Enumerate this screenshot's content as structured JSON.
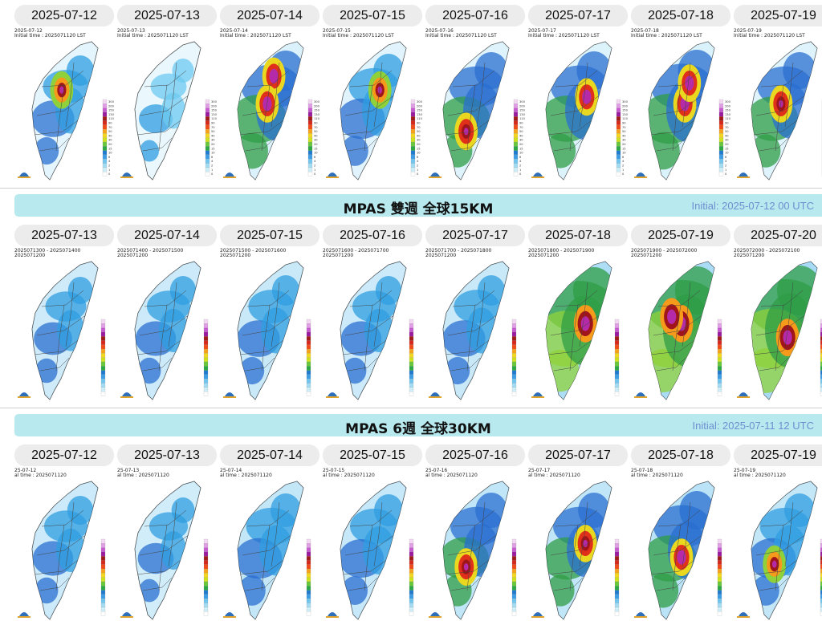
{
  "colors": {
    "banner": "#b7e9ef",
    "pill": "#ececec",
    "initial_text": "#6f8fd0"
  },
  "rows": [
    {
      "title": "",
      "initial": "",
      "style": "cwa",
      "tiles": [
        {
          "date": "2025-07-12",
          "cap1": "2025-07-12",
          "cap2": "Initial time : 2025071120 LST",
          "intensity": 0.35,
          "hot": [
            [
              0.45,
              0.35
            ]
          ]
        },
        {
          "date": "2025-07-13",
          "cap1": "2025-07-13",
          "cap2": "Initial time : 2025071120 LST",
          "intensity": 0.15,
          "hot": []
        },
        {
          "date": "2025-07-14",
          "cap1": "2025-07-14",
          "cap2": "Initial time : 2025071120 LST",
          "intensity": 0.65,
          "hot": [
            [
              0.55,
              0.25
            ],
            [
              0.45,
              0.45
            ]
          ]
        },
        {
          "date": "2025-07-15",
          "cap1": "2025-07-15",
          "cap2": "Initial time : 2025071120 LST",
          "intensity": 0.45,
          "hot": [
            [
              0.6,
              0.35
            ]
          ]
        },
        {
          "date": "2025-07-16",
          "cap1": "2025-07-16",
          "cap2": "Initial time : 2025071120 LST",
          "intensity": 0.55,
          "hot": [
            [
              0.35,
              0.65
            ]
          ]
        },
        {
          "date": "2025-07-17",
          "cap1": "2025-07-17",
          "cap2": "Initial time : 2025071120 LST",
          "intensity": 0.6,
          "hot": [
            [
              0.62,
              0.4
            ]
          ]
        },
        {
          "date": "2025-07-18",
          "cap1": "2025-07-18",
          "cap2": "Initial time : 2025071120 LST",
          "intensity": 0.7,
          "hot": [
            [
              0.55,
              0.45
            ],
            [
              0.62,
              0.3
            ]
          ]
        },
        {
          "date": "2025-07-19",
          "cap1": "2025-07-19",
          "cap2": "Initial time : 2025071120 LST",
          "intensity": 0.55,
          "hot": [
            [
              0.45,
              0.45
            ]
          ]
        }
      ]
    },
    {
      "title": "MPAS 雙週 全球15KM",
      "initial": "Initial: 2025-07-12 00 UTC",
      "style": "mpas15",
      "tiles": [
        {
          "date": "2025-07-13",
          "cap1": "2025071300 - 2025071400",
          "cap2": "2025071200",
          "intensity": 0.25,
          "hot": []
        },
        {
          "date": "2025-07-14",
          "cap1": "2025071400 - 2025071500",
          "cap2": "2025071200",
          "intensity": 0.3,
          "hot": []
        },
        {
          "date": "2025-07-15",
          "cap1": "2025071500 - 2025071600",
          "cap2": "2025071200",
          "intensity": 0.35,
          "hot": []
        },
        {
          "date": "2025-07-16",
          "cap1": "2025071600 - 2025071700",
          "cap2": "2025071200",
          "intensity": 0.3,
          "hot": []
        },
        {
          "date": "2025-07-17",
          "cap1": "2025071700 - 2025071800",
          "cap2": "2025071200",
          "intensity": 0.35,
          "hot": []
        },
        {
          "date": "2025-07-18",
          "cap1": "2025071800 - 2025071900",
          "cap2": "2025071200",
          "intensity": 0.85,
          "hot": [
            [
              0.6,
              0.45
            ]
          ]
        },
        {
          "date": "2025-07-19",
          "cap1": "2025071900 - 2025072000",
          "cap2": "2025071200",
          "intensity": 0.9,
          "hot": [
            [
              0.5,
              0.45
            ],
            [
              0.35,
              0.4
            ]
          ]
        },
        {
          "date": "2025-07-20",
          "cap1": "2025072000 - 2025072100",
          "cap2": "2025071200",
          "intensity": 0.95,
          "hot": [
            [
              0.55,
              0.55
            ]
          ]
        }
      ]
    },
    {
      "title": "MPAS 6週 全球30KM",
      "initial": "Initial: 2025-07-11 12 UTC",
      "style": "mpas30",
      "tiles": [
        {
          "date": "2025-07-12",
          "cap1": "25-07-12",
          "cap2": "al time : 2025071120",
          "intensity": 0.3,
          "hot": []
        },
        {
          "date": "2025-07-13",
          "cap1": "25-07-13",
          "cap2": "al time : 2025071120",
          "intensity": 0.2,
          "hot": []
        },
        {
          "date": "2025-07-14",
          "cap1": "25-07-14",
          "cap2": "al time : 2025071120",
          "intensity": 0.45,
          "hot": []
        },
        {
          "date": "2025-07-15",
          "cap1": "25-07-15",
          "cap2": "al time : 2025071120",
          "intensity": 0.4,
          "hot": []
        },
        {
          "date": "2025-07-16",
          "cap1": "25-07-16",
          "cap2": "al time : 2025071120",
          "intensity": 0.5,
          "hot": [
            [
              0.35,
              0.62
            ]
          ]
        },
        {
          "date": "2025-07-17",
          "cap1": "25-07-17",
          "cap2": "al time : 2025071120",
          "intensity": 0.5,
          "hot": [
            [
              0.6,
              0.45
            ]
          ]
        },
        {
          "date": "2025-07-18",
          "cap1": "25-07-18",
          "cap2": "al time : 2025071120",
          "intensity": 0.6,
          "hot": [
            [
              0.5,
              0.55
            ]
          ]
        },
        {
          "date": "2025-07-19",
          "cap1": "25-07-19",
          "cap2": "al time : 2025071120",
          "intensity": 0.45,
          "hot": [
            [
              0.35,
              0.6
            ]
          ]
        }
      ]
    }
  ],
  "legend_values": [
    "300",
    "200",
    "150",
    "130",
    "110",
    "90",
    "70",
    "50",
    "40",
    "30",
    "20",
    "15",
    "10",
    "6",
    "4",
    "2",
    "1",
    "0"
  ]
}
